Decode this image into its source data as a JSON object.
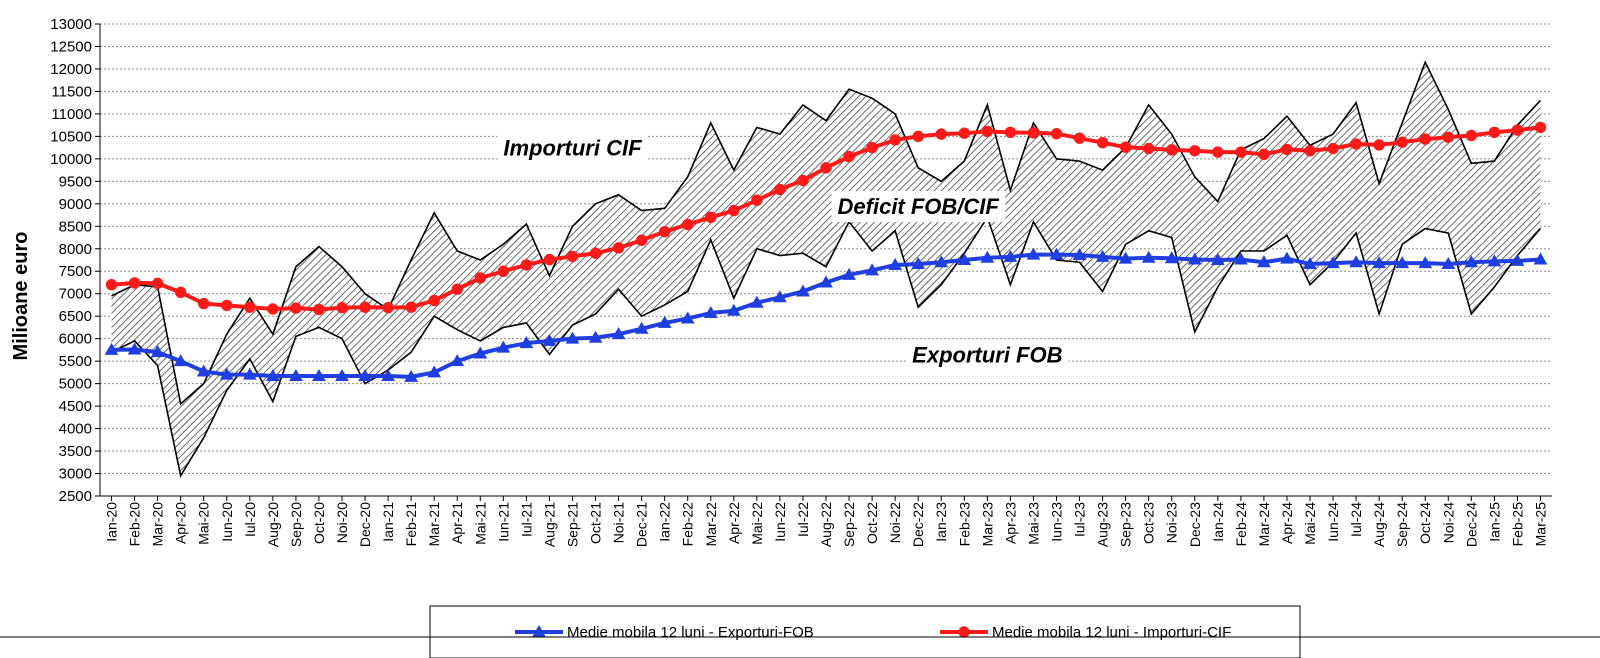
{
  "chart_data": {
    "type": "area",
    "ylabel": "Milioane  euro",
    "ylim": [
      2500,
      13000
    ],
    "ytick_step": 500,
    "grid": true,
    "legend_position": "bottom",
    "categories": [
      "Ian-20",
      "Feb-20",
      "Mar-20",
      "Apr-20",
      "Mai-20",
      "Iun-20",
      "Iul-20",
      "Aug-20",
      "Sep-20",
      "Oct-20",
      "Noi-20",
      "Dec-20",
      "Ian-21",
      "Feb-21",
      "Mar-21",
      "Apr-21",
      "Mai-21",
      "Iun-21",
      "Iul-21",
      "Aug-21",
      "Sep-21",
      "Oct-21",
      "Noi-21",
      "Dec-21",
      "Ian-22",
      "Feb-22",
      "Mar-22",
      "Apr-22",
      "Mai-22",
      "Iun-22",
      "Iul-22",
      "Aug-22",
      "Sep-22",
      "Oct-22",
      "Noi-22",
      "Dec-22",
      "Ian-23",
      "Feb-23",
      "Mar-23",
      "Apr-23",
      "Mai-23",
      "Iun-23",
      "Iul-23",
      "Aug-23",
      "Sep-23",
      "Oct-23",
      "Noi-23",
      "Dec-23",
      "Ian-24",
      "Feb-24",
      "Mar-24",
      "Apr-24",
      "Mai-24",
      "Iun-24",
      "Iul-24",
      "Aug-24",
      "Sep-24",
      "Oct-24",
      "Noi-24",
      "Dec-24",
      "Ian-25",
      "Feb-25",
      "Mar-25"
    ],
    "series": [
      {
        "name": "Importuri CIF",
        "role": "area-top",
        "color": "#000000",
        "values": [
          6950,
          7200,
          7150,
          4550,
          5000,
          6100,
          6900,
          6100,
          7600,
          8050,
          7600,
          7000,
          6650,
          7750,
          8800,
          7950,
          7750,
          8100,
          8550,
          7400,
          8500,
          9000,
          9200,
          8850,
          8900,
          9600,
          10800,
          9750,
          10700,
          10550,
          11200,
          10850,
          11550,
          11350,
          11000,
          9800,
          9500,
          9950,
          11200,
          9300,
          10800,
          10000,
          9950,
          9750,
          10250,
          11200,
          10550,
          9600,
          9050,
          10200,
          10450,
          10950,
          10300,
          10550,
          11250,
          9450,
          10800,
          12150,
          11100,
          9900,
          9950,
          10750,
          11300
        ]
      },
      {
        "name": "Exporturi FOB",
        "role": "area-bottom",
        "color": "#000000",
        "values": [
          5700,
          5950,
          5400,
          2950,
          3800,
          4850,
          5550,
          4600,
          6050,
          6250,
          6000,
          5000,
          5300,
          5700,
          6500,
          6200,
          5950,
          6250,
          6350,
          5650,
          6300,
          6550,
          7100,
          6500,
          6750,
          7050,
          8200,
          6900,
          8000,
          7850,
          7900,
          7600,
          8600,
          7950,
          8400,
          6700,
          7200,
          7900,
          8700,
          7200,
          8600,
          7750,
          7700,
          7050,
          8100,
          8400,
          8250,
          6150,
          7150,
          7950,
          7950,
          8300,
          7200,
          7700,
          8350,
          6550,
          8100,
          8450,
          8350,
          6550,
          7150,
          7850,
          8450
        ]
      },
      {
        "name": "Medie mobila 12 luni - Exporturi-FOB",
        "role": "line",
        "marker": "triangle",
        "color": "#1f3fe0",
        "values": [
          5750,
          5760,
          5700,
          5500,
          5270,
          5200,
          5200,
          5170,
          5170,
          5170,
          5170,
          5170,
          5170,
          5150,
          5250,
          5500,
          5670,
          5800,
          5900,
          5950,
          6000,
          6020,
          6100,
          6220,
          6350,
          6450,
          6570,
          6620,
          6800,
          6920,
          7050,
          7250,
          7420,
          7520,
          7640,
          7660,
          7700,
          7750,
          7800,
          7820,
          7870,
          7870,
          7860,
          7820,
          7780,
          7800,
          7790,
          7760,
          7750,
          7760,
          7700,
          7780,
          7660,
          7680,
          7700,
          7680,
          7680,
          7680,
          7660,
          7700,
          7720,
          7730,
          7760
        ]
      },
      {
        "name": "Medie mobila 12 luni - Importuri-CIF",
        "role": "line",
        "marker": "circle",
        "color": "#ff1a1a",
        "values": [
          7200,
          7240,
          7230,
          7030,
          6780,
          6740,
          6700,
          6660,
          6680,
          6650,
          6690,
          6700,
          6690,
          6700,
          6850,
          7100,
          7350,
          7500,
          7640,
          7760,
          7830,
          7900,
          8020,
          8190,
          8380,
          8540,
          8700,
          8850,
          9080,
          9320,
          9520,
          9800,
          10050,
          10250,
          10420,
          10500,
          10550,
          10570,
          10610,
          10590,
          10580,
          10560,
          10460,
          10360,
          10260,
          10230,
          10200,
          10180,
          10150,
          10150,
          10100,
          10210,
          10180,
          10230,
          10330,
          10310,
          10370,
          10440,
          10480,
          10520,
          10590,
          10640,
          10700
        ]
      }
    ],
    "annotations": [
      {
        "text": "Importuri CIF",
        "x": "Sep-21",
        "y": 10250
      },
      {
        "text": "Deficit FOB/CIF",
        "x": "Dec-22",
        "y": 8950
      },
      {
        "text": "Exporturi FOB",
        "x": "Mar-23",
        "y": 5650
      }
    ]
  }
}
